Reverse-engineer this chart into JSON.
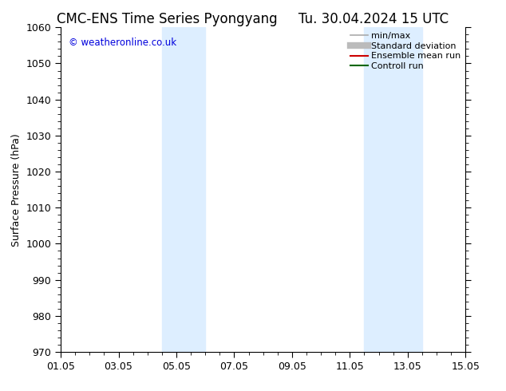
{
  "title_left": "CMC-ENS Time Series Pyongyang",
  "title_right": "Tu. 30.04.2024 15 UTC",
  "ylabel": "Surface Pressure (hPa)",
  "ylim": [
    970,
    1060
  ],
  "yticks": [
    970,
    980,
    990,
    1000,
    1010,
    1020,
    1030,
    1040,
    1050,
    1060
  ],
  "xlim": [
    0,
    14
  ],
  "xtick_positions": [
    0,
    2,
    4,
    6,
    8,
    10,
    12,
    14
  ],
  "xtick_labels": [
    "01.05",
    "03.05",
    "05.05",
    "07.05",
    "09.05",
    "11.05",
    "13.05",
    "15.05"
  ],
  "shaded_bands": [
    {
      "xmin": 3.5,
      "xmax": 5.0
    },
    {
      "xmin": 10.5,
      "xmax": 12.5
    }
  ],
  "shade_color": "#ddeeff",
  "background_color": "#ffffff",
  "copyright_text": "© weatheronline.co.uk",
  "legend_items": [
    {
      "label": "min/max",
      "color": "#aaaaaa",
      "lw": 1.2
    },
    {
      "label": "Standard deviation",
      "color": "#bbbbbb",
      "lw": 6
    },
    {
      "label": "Ensemble mean run",
      "color": "#cc0000",
      "lw": 1.5
    },
    {
      "label": "Controll run",
      "color": "#006600",
      "lw": 1.5
    }
  ],
  "title_fontsize": 12,
  "axis_fontsize": 9,
  "tick_fontsize": 9,
  "legend_fontsize": 8
}
